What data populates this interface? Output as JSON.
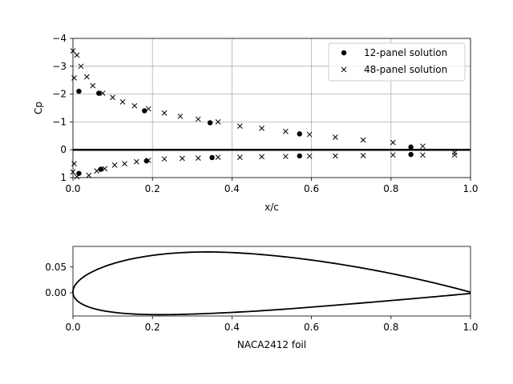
{
  "chart_data": [
    {
      "type": "scatter",
      "xlabel": "x/c",
      "ylabel": "Cp",
      "xlim": [
        0.0,
        1.0
      ],
      "ylim": [
        1,
        -4
      ],
      "y_inverted": true,
      "grid": true,
      "legend_position": "top-right",
      "x_ticks": [
        "0.0",
        "0.2",
        "0.4",
        "0.6",
        "0.8",
        "1.0"
      ],
      "y_ticks": [
        "−4",
        "−3",
        "−2",
        "−1",
        "0",
        "1"
      ],
      "zero_line": 0,
      "series": [
        {
          "name": "12-panel solution",
          "marker": "circle",
          "x": [
            0.015,
            0.065,
            0.18,
            0.345,
            0.57,
            0.85,
            0.015,
            0.07,
            0.185,
            0.35,
            0.57,
            0.85
          ],
          "y": [
            -2.1,
            -2.03,
            -1.4,
            -0.97,
            -0.57,
            -0.1,
            0.85,
            0.7,
            0.4,
            0.28,
            0.22,
            0.17
          ]
        },
        {
          "name": "48-panel solution",
          "marker": "x",
          "x": [
            0.0,
            0.003,
            0.01,
            0.02,
            0.035,
            0.05,
            0.075,
            0.1,
            0.125,
            0.155,
            0.19,
            0.23,
            0.27,
            0.315,
            0.365,
            0.42,
            0.475,
            0.535,
            0.595,
            0.66,
            0.73,
            0.805,
            0.88,
            0.96,
            0.0,
            0.003,
            0.01,
            0.04,
            0.06,
            0.08,
            0.105,
            0.13,
            0.16,
            0.19,
            0.23,
            0.275,
            0.315,
            0.365,
            0.42,
            0.475,
            0.535,
            0.595,
            0.66,
            0.73,
            0.805,
            0.88,
            0.96
          ],
          "y": [
            0.8,
            -2.58,
            -3.4,
            -3.0,
            -2.62,
            -2.3,
            -2.03,
            -1.88,
            -1.72,
            -1.58,
            -1.47,
            -1.32,
            -1.2,
            -1.1,
            -1.0,
            -0.85,
            -0.77,
            -0.66,
            -0.55,
            -0.45,
            -0.35,
            -0.26,
            -0.13,
            0.1,
            -3.55,
            0.5,
            0.97,
            0.92,
            0.76,
            0.68,
            0.55,
            0.5,
            0.43,
            0.38,
            0.33,
            0.31,
            0.3,
            0.27,
            0.27,
            0.25,
            0.24,
            0.23,
            0.22,
            0.21,
            0.19,
            0.19,
            0.19
          ]
        }
      ]
    },
    {
      "type": "line",
      "xlabel": "NACA2412 foil",
      "ylabel": "",
      "xlim": [
        0.0,
        1.0
      ],
      "ylim": [
        -0.045,
        0.09
      ],
      "grid": false,
      "x_ticks": [
        "0.0",
        "0.2",
        "0.4",
        "0.6",
        "0.8",
        "1.0"
      ],
      "y_ticks": [
        "0.00",
        "0.05"
      ],
      "series": [
        {
          "name": "NACA2412 profile",
          "camber_max": 0.02,
          "camber_position": 0.4,
          "thickness": 0.12
        }
      ]
    }
  ]
}
